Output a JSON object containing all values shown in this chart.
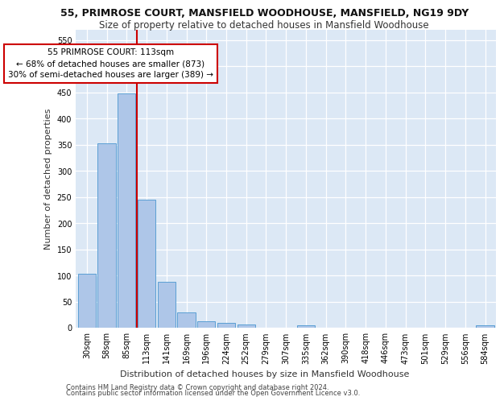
{
  "title": "55, PRIMROSE COURT, MANSFIELD WOODHOUSE, MANSFIELD, NG19 9DY",
  "subtitle": "Size of property relative to detached houses in Mansfield Woodhouse",
  "xlabel": "Distribution of detached houses by size in Mansfield Woodhouse",
  "ylabel": "Number of detached properties",
  "footer_line1": "Contains HM Land Registry data © Crown copyright and database right 2024.",
  "footer_line2": "Contains public sector information licensed under the Open Government Licence v3.0.",
  "annotation_line1": "55 PRIMROSE COURT: 113sqm",
  "annotation_line2": "← 68% of detached houses are smaller (873)",
  "annotation_line3": "30% of semi-detached houses are larger (389) →",
  "categories": [
    "30sqm",
    "58sqm",
    "85sqm",
    "113sqm",
    "141sqm",
    "169sqm",
    "196sqm",
    "224sqm",
    "252sqm",
    "279sqm",
    "307sqm",
    "335sqm",
    "362sqm",
    "390sqm",
    "418sqm",
    "446sqm",
    "473sqm",
    "501sqm",
    "529sqm",
    "556sqm",
    "584sqm"
  ],
  "bar_values": [
    103,
    353,
    448,
    245,
    88,
    30,
    13,
    9,
    6,
    0,
    0,
    5,
    0,
    0,
    0,
    0,
    0,
    0,
    0,
    0,
    5
  ],
  "bar_color": "#aec6e8",
  "bar_edge_color": "#5a9fd4",
  "vline_color": "#cc0000",
  "vline_x_index": 3,
  "annotation_box_color": "#cc0000",
  "annotation_box_fill": "#ffffff",
  "ylim": [
    0,
    570
  ],
  "yticks": [
    0,
    50,
    100,
    150,
    200,
    250,
    300,
    350,
    400,
    450,
    500,
    550
  ],
  "bg_color": "#dce8f5",
  "plot_bg_color": "#dce8f5",
  "fig_bg_color": "#ffffff",
  "title_fontsize": 9,
  "subtitle_fontsize": 8.5,
  "xlabel_fontsize": 8,
  "ylabel_fontsize": 8,
  "tick_fontsize": 7,
  "annotation_fontsize": 7.5,
  "footer_fontsize": 6
}
